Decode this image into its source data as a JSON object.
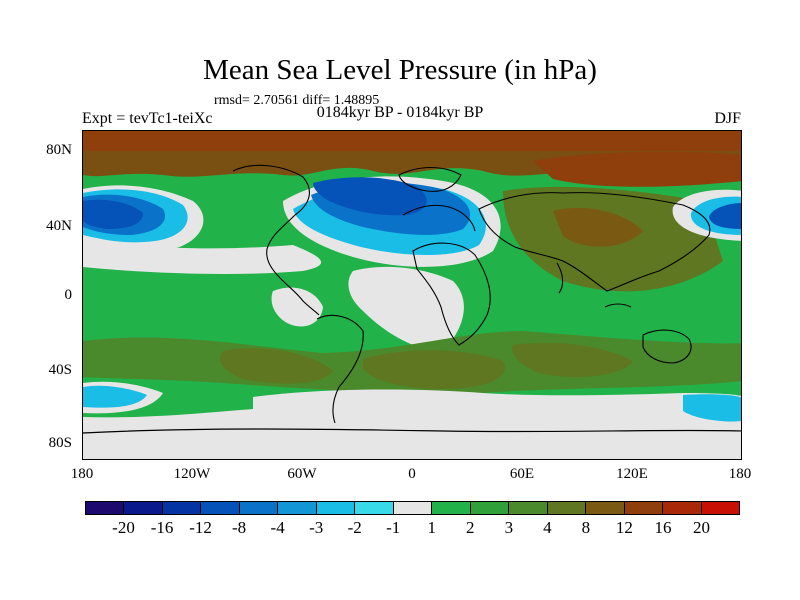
{
  "title": "Mean Sea Level Pressure (in hPa)",
  "stats": "rmsd= 2.70561 diff= 1.48895",
  "experiment": "Expt = tevTc1-teiXc",
  "period": "0184kyr BP - 0184kyr BP",
  "season": "DJF",
  "lat_labels": [
    "80N",
    "40N",
    "0",
    "40S",
    "80S"
  ],
  "lon_labels": [
    "180",
    "120W",
    "60W",
    "0",
    "60E",
    "120E",
    "180"
  ],
  "colorbar": {
    "colors": [
      "#1c0a6e",
      "#0a1a8c",
      "#0433a3",
      "#0552b8",
      "#0a72c8",
      "#1296d6",
      "#19bde6",
      "#38d9e8",
      "#e6e6e6",
      "#22b24a",
      "#30a03a",
      "#4a8a2c",
      "#5f7720",
      "#7a5a12",
      "#8e3f0c",
      "#a82808",
      "#c81004"
    ],
    "labels": [
      "-20",
      "-16",
      "-12",
      "-8",
      "-4",
      "-3",
      "-2",
      "-1",
      "1",
      "2",
      "3",
      "4",
      "8",
      "12",
      "16",
      "20"
    ]
  },
  "legend_colors": {
    "strong_low": "#0a3da8",
    "moderate_low": "#1a8ed6",
    "weak_low": "#30d4e8",
    "neutral": "#e6e6e6",
    "weak_high": "#22b24a",
    "moderate_high": "#4a8a2c",
    "strong_high": "#7a5012"
  }
}
